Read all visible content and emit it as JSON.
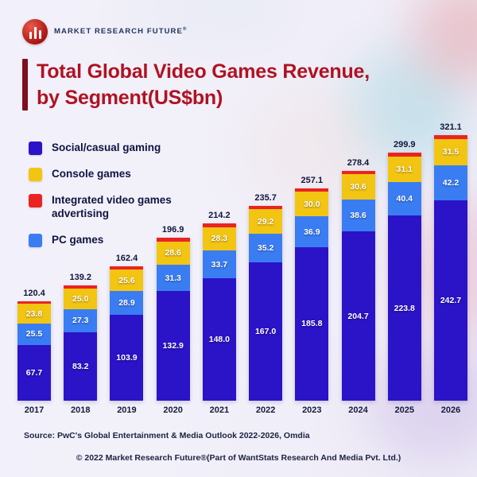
{
  "logo": {
    "brand": "MARKET RESEARCH FUTURE",
    "registered": "®"
  },
  "title": {
    "line1": "Total Global Video Games Revenue,",
    "line2": "by Segment(US$bn)"
  },
  "legend": [
    {
      "label": "Social/casual gaming",
      "color": "#2b13c8"
    },
    {
      "label": "Console games",
      "color": "#f3c513"
    },
    {
      "label": "Integrated video games advertising",
      "color": "#ea2420"
    },
    {
      "label": "PC games",
      "color": "#3a7df2"
    }
  ],
  "chart_data": {
    "type": "bar",
    "stacked": true,
    "title": "Total Global Video Games Revenue, by Segment(US$bn)",
    "value_unit": "US$bn",
    "xlabel": "",
    "ylabel": "",
    "grid": false,
    "legend_position": "upper-left",
    "categories": [
      "2017",
      "2018",
      "2019",
      "2020",
      "2021",
      "2022",
      "2023",
      "2024",
      "2025",
      "2026"
    ],
    "totals": [
      120.4,
      139.2,
      162.4,
      196.9,
      214.2,
      235.7,
      257.1,
      278.4,
      299.9,
      321.1
    ],
    "series": [
      {
        "name": "Social/casual gaming",
        "color": "#2b13c8",
        "labels_shown": true,
        "values": [
          67.7,
          83.2,
          103.9,
          132.9,
          148.0,
          167.0,
          185.8,
          204.7,
          223.8,
          242.7
        ]
      },
      {
        "name": "PC games",
        "color": "#3a7df2",
        "labels_shown": true,
        "values": [
          25.5,
          27.3,
          28.9,
          31.3,
          33.7,
          35.2,
          36.9,
          38.6,
          40.4,
          42.2
        ]
      },
      {
        "name": "Console games",
        "color": "#f3c513",
        "labels_shown": true,
        "values": [
          23.8,
          25.0,
          25.6,
          28.6,
          28.3,
          29.2,
          30.0,
          30.6,
          31.1,
          31.5
        ]
      },
      {
        "name": "Integrated video games advertising",
        "color": "#ea2420",
        "labels_shown": false,
        "estimated": true,
        "values": [
          3.4,
          3.7,
          4.0,
          4.1,
          4.2,
          4.3,
          4.4,
          4.5,
          4.6,
          4.7
        ]
      }
    ]
  },
  "footer": {
    "source": "Source: PwC's Global Entertainment & Media Outlook 2022-2026, Omdia",
    "copyright": "© 2022 Market Research Future®(Part of WantStats Research And Media Pvt. Ltd.)"
  }
}
